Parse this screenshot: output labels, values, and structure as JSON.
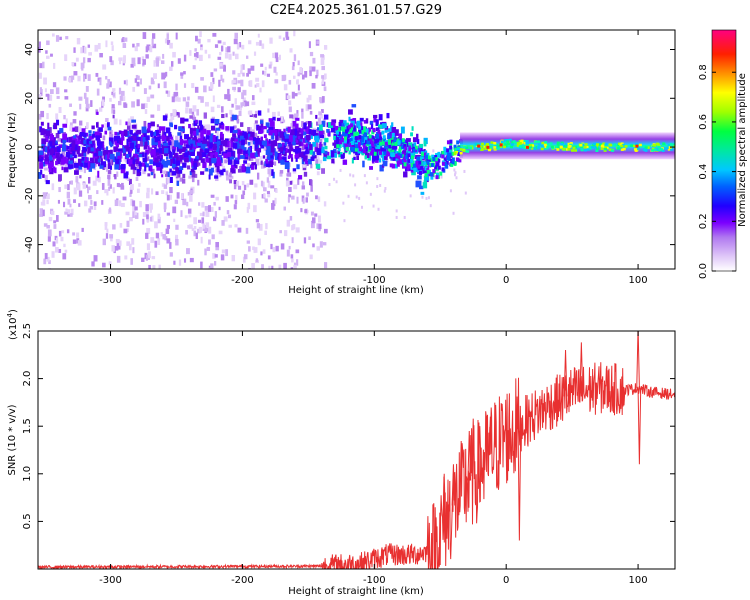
{
  "chart_data": [
    {
      "type": "heatmap",
      "title": "C2E4.2025.361.01.57.G29",
      "xlabel": "Height of straight line (km)",
      "ylabel": "Frequency (Hz)",
      "xlim": [
        -355,
        128
      ],
      "ylim": [
        -50,
        48
      ],
      "xticks": [
        -300,
        -200,
        -100,
        0,
        100
      ],
      "xtick_labels": [
        "-300",
        "-200",
        "-100",
        "0",
        "100"
      ],
      "yticks": [
        -40,
        -20,
        0,
        20,
        40
      ],
      "ytick_labels": [
        "-40",
        "-20",
        "0",
        "20",
        "40"
      ],
      "colorbar": {
        "label": "Normalized spectral amplitude",
        "range": [
          0,
          0.97
        ],
        "ticks": [
          0,
          0.2,
          0.4,
          0.6,
          0.8
        ],
        "tick_labels": [
          "0.0",
          "0.2",
          "0.4",
          "0.6",
          "0.8"
        ],
        "colors": [
          "#ffffff",
          "#c8a0f0",
          "#7b00ff",
          "#0000ff",
          "#00c8ff",
          "#00ff80",
          "#ffff00",
          "#ff8000",
          "#ff0000",
          "#ff00a0"
        ]
      },
      "track": {
        "description_x": [
          -355,
          -250,
          -150,
          -120,
          -90,
          -70,
          -55,
          -45,
          -30,
          -10,
          0,
          50,
          100,
          128
        ],
        "center_freq_hz": [
          0,
          0,
          2,
          5,
          2,
          -4,
          -8,
          -2,
          0,
          1,
          2,
          0.5,
          0.5,
          0.5
        ]
      }
    },
    {
      "type": "line",
      "xlabel": "Height of straight line (km)",
      "ylabel": "SNR (10 * v/v)",
      "y_exponent_label": "(x10",
      "y_exponent_power": "4",
      "y_exponent_close": ")",
      "xlim": [
        -355,
        128
      ],
      "ylim": [
        0,
        2.5
      ],
      "xticks": [
        -300,
        -200,
        -100,
        0,
        100
      ],
      "xtick_labels": [
        "-300",
        "-200",
        "-100",
        "0",
        "100"
      ],
      "yticks": [
        0.5,
        1.0,
        1.5,
        2.0,
        2.5
      ],
      "ytick_labels": [
        "0.5",
        "1.0",
        "1.5",
        "2.0",
        "2.5"
      ],
      "color": "#e83030",
      "series_outline": {
        "x": [
          -355,
          -140,
          -110,
          -90,
          -70,
          -55,
          -45,
          -30,
          -20,
          -10,
          0,
          10,
          30,
          50,
          70,
          90,
          100,
          110,
          128
        ],
        "y": [
          0.02,
          0.03,
          0.06,
          0.15,
          0.15,
          0.2,
          0.55,
          0.9,
          1.05,
          1.25,
          1.4,
          1.5,
          1.7,
          1.85,
          1.9,
          1.88,
          1.9,
          1.86,
          1.83
        ]
      },
      "spikes": [
        {
          "x": -47,
          "y": 1.0
        },
        {
          "x": -40,
          "y": 1.1
        },
        {
          "x": -28,
          "y": 1.45
        },
        {
          "x": -25,
          "y": 1.58
        },
        {
          "x": -20,
          "y": 1.5
        },
        {
          "x": -12,
          "y": 1.6
        },
        {
          "x": 10,
          "y": 0.3
        },
        {
          "x": 45,
          "y": 2.3
        },
        {
          "x": 57,
          "y": 2.38
        },
        {
          "x": 100,
          "y": 2.55
        },
        {
          "x": 101,
          "y": 1.1
        }
      ]
    }
  ]
}
